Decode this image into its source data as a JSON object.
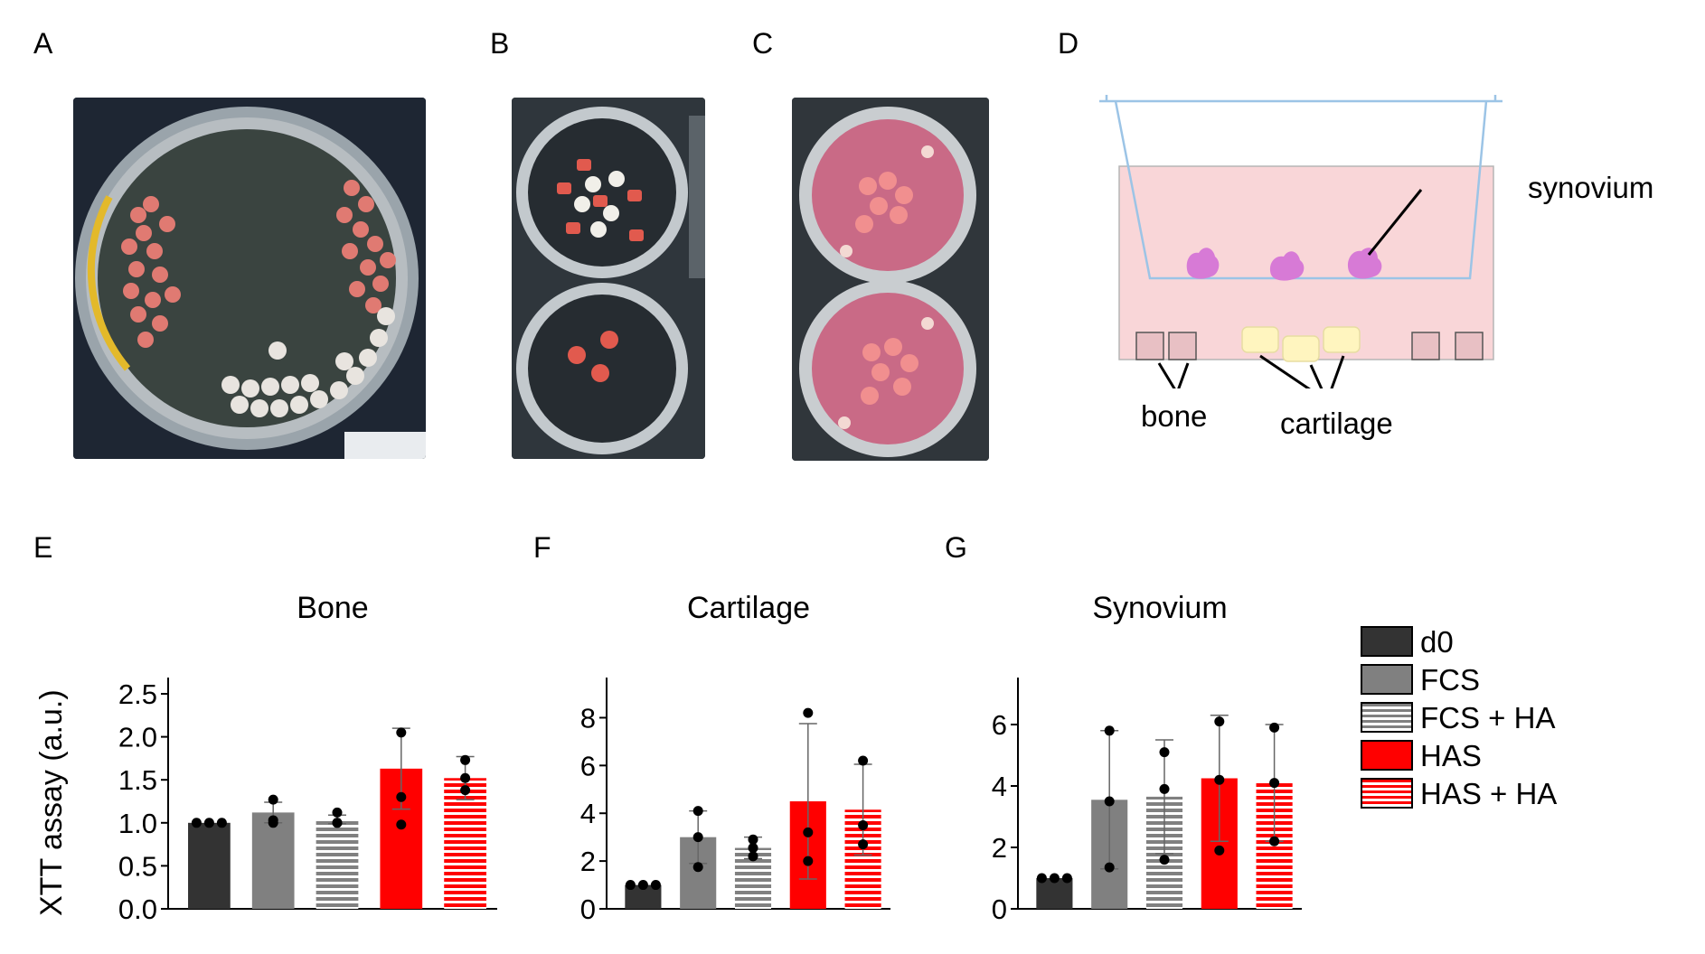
{
  "panel_labels": {
    "a": "A",
    "b": "B",
    "c": "C",
    "d": "D",
    "e": "E",
    "f": "F",
    "g": "G"
  },
  "schematic": {
    "synovium_label": "synovium",
    "bone_label": "bone",
    "cartilage_label": "cartilage"
  },
  "colors": {
    "d0": "#333333",
    "fcs": "#808080",
    "has": "#ff0000",
    "medium": "#f9d6d8",
    "synovium": "#d77ad6",
    "cartilage": "#fff5bf"
  },
  "legend": {
    "items": [
      {
        "label": "d0",
        "fill": "#333333",
        "pattern": "solid"
      },
      {
        "label": "FCS",
        "fill": "#808080",
        "pattern": "solid"
      },
      {
        "label": "FCS + HA",
        "fill": "#808080",
        "pattern": "stripes"
      },
      {
        "label": "HAS",
        "fill": "#ff0000",
        "pattern": "solid"
      },
      {
        "label": "HAS + HA",
        "fill": "#ff0000",
        "pattern": "stripes"
      }
    ]
  },
  "chart_data": [
    {
      "type": "bar",
      "title": "Bone",
      "ylabel": "XTT assay (a.u.)",
      "xlabel": "",
      "categories": [
        "d0",
        "FCS",
        "FCS + HA",
        "HAS",
        "HAS + HA"
      ],
      "values": [
        1.0,
        1.12,
        1.04,
        1.63,
        1.52
      ],
      "errors": [
        0.0,
        0.12,
        0.05,
        0.47,
        0.25
      ],
      "points": [
        [
          1.0,
          1.0,
          1.0
        ],
        [
          1.0,
          1.03,
          1.27
        ],
        [
          1.0,
          1.0,
          1.12
        ],
        [
          0.98,
          1.3,
          2.05
        ],
        [
          1.38,
          1.52,
          1.73
        ]
      ],
      "ylim": [
        0,
        2.5
      ],
      "yticks": [
        "0.0",
        "0.5",
        "1.0",
        "1.5",
        "2.0",
        "2.5"
      ],
      "grid": false
    },
    {
      "type": "bar",
      "title": "Cartilage",
      "ylabel": "",
      "xlabel": "",
      "categories": [
        "d0",
        "FCS",
        "FCS + HA",
        "HAS",
        "HAS + HA"
      ],
      "values": [
        1.0,
        3.0,
        2.55,
        4.5,
        4.15
      ],
      "errors": [
        0.0,
        1.1,
        0.45,
        3.25,
        1.9
      ],
      "points": [
        [
          1.0,
          1.0,
          1.0
        ],
        [
          1.75,
          3.0,
          4.1
        ],
        [
          2.2,
          2.55,
          2.9
        ],
        [
          2.0,
          3.2,
          8.2
        ],
        [
          2.7,
          3.5,
          6.2
        ]
      ],
      "ylim": [
        0,
        9
      ],
      "yticks": [
        "0",
        "2",
        "4",
        "6",
        "8"
      ],
      "grid": false
    },
    {
      "type": "bar",
      "title": "Synovium",
      "ylabel": "",
      "xlabel": "",
      "categories": [
        "d0",
        "FCS",
        "FCS + HA",
        "HAS",
        "HAS + HA"
      ],
      "values": [
        1.0,
        3.55,
        3.65,
        4.25,
        4.1
      ],
      "errors": [
        0.0,
        2.25,
        1.85,
        2.05,
        1.9
      ],
      "points": [
        [
          1.0,
          1.0,
          1.0
        ],
        [
          1.35,
          3.5,
          5.8
        ],
        [
          1.6,
          3.9,
          5.1
        ],
        [
          1.9,
          4.2,
          6.1
        ],
        [
          2.2,
          4.1,
          5.9
        ]
      ],
      "ylim": [
        0,
        7
      ],
      "yticks": [
        "0",
        "2",
        "4",
        "6"
      ],
      "grid": false
    }
  ]
}
